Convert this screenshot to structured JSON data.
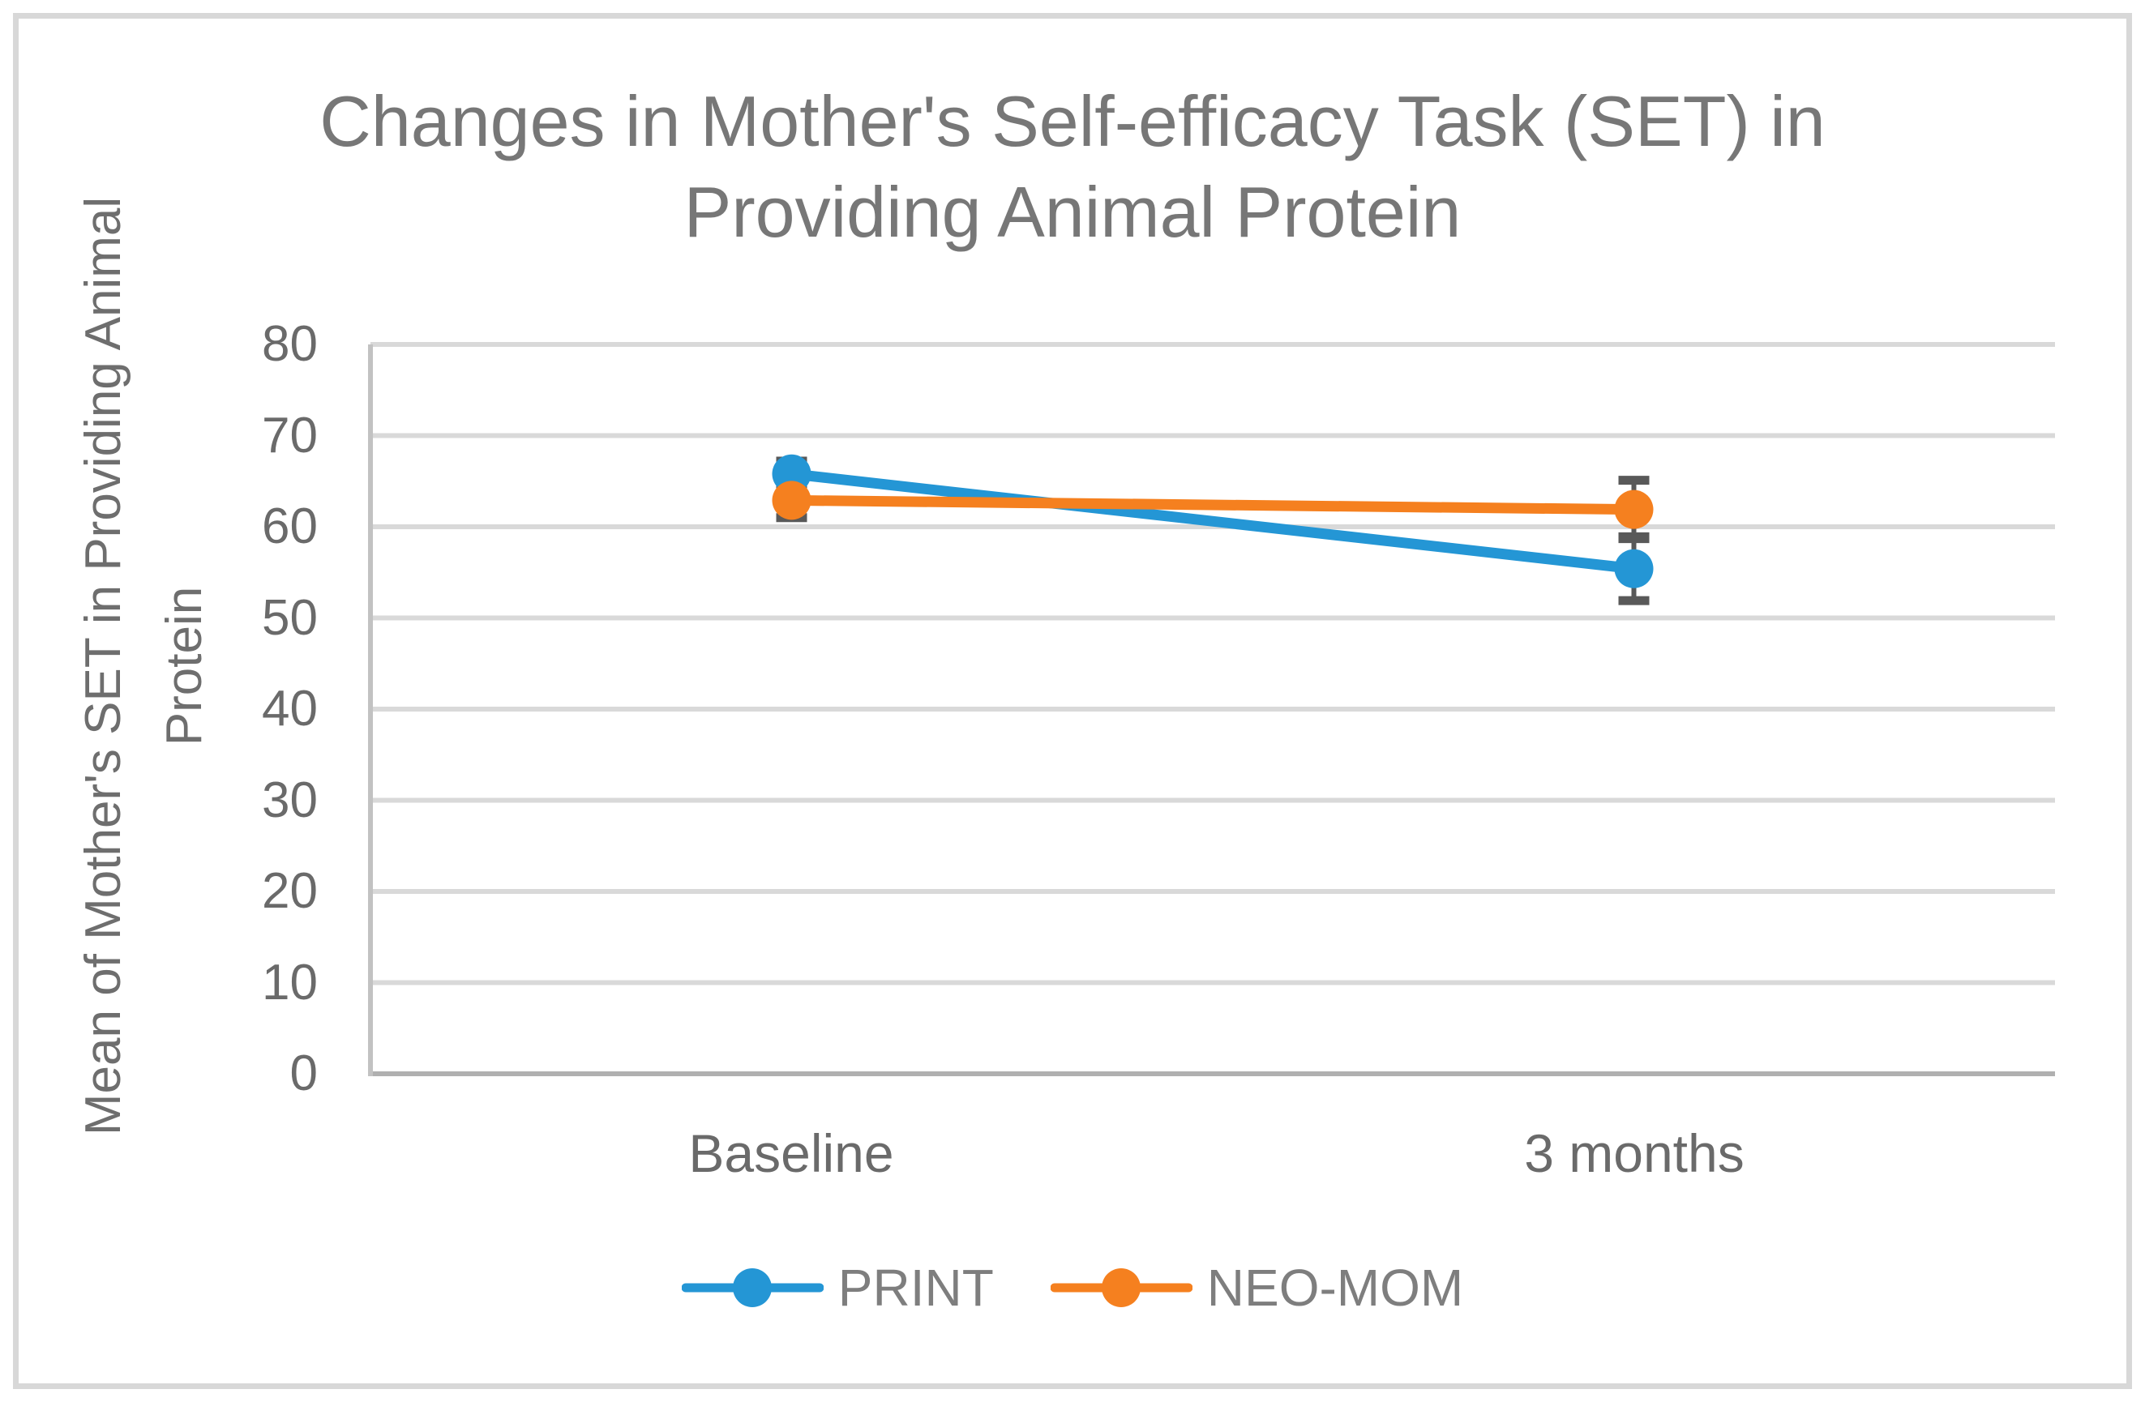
{
  "chart_data": {
    "type": "line",
    "title": "Changes in Mother's Self-efficacy Task (SET) in Providing Animal Protein",
    "title_lines": [
      "Changes in Mother's Self-efficacy Task (SET) in",
      "Providing Animal Protein"
    ],
    "categories": [
      "Baseline",
      "3 months"
    ],
    "series": [
      {
        "name": "PRINT",
        "color": "#2496D5",
        "values": [
          65.8,
          55.4
        ],
        "error_bars": [
          1.4,
          3.5
        ]
      },
      {
        "name": "NEO-MOM",
        "color": "#F5801F",
        "values": [
          62.9,
          61.9
        ],
        "error_bars": [
          1.9,
          3.2
        ]
      }
    ],
    "ylabel": "Mean of Mother's SET in Providing Animal Protein",
    "ylabel_lines": [
      "Mean of Mother's SET in Providing Animal",
      "Protein"
    ],
    "ylim": [
      0,
      80
    ],
    "yticks": [
      80,
      70,
      60,
      50,
      40,
      30,
      20,
      10,
      0
    ],
    "grid": true,
    "legend_position": "bottom",
    "marker_style": "circle",
    "colors": {
      "gridline": "#D9D9D9",
      "axis_line": "#C2C2C2",
      "x_axis_line": "#B0B0B0",
      "error_bar": "#595959",
      "axis_text": "#6A6A6A",
      "title_text": "#777777"
    }
  }
}
